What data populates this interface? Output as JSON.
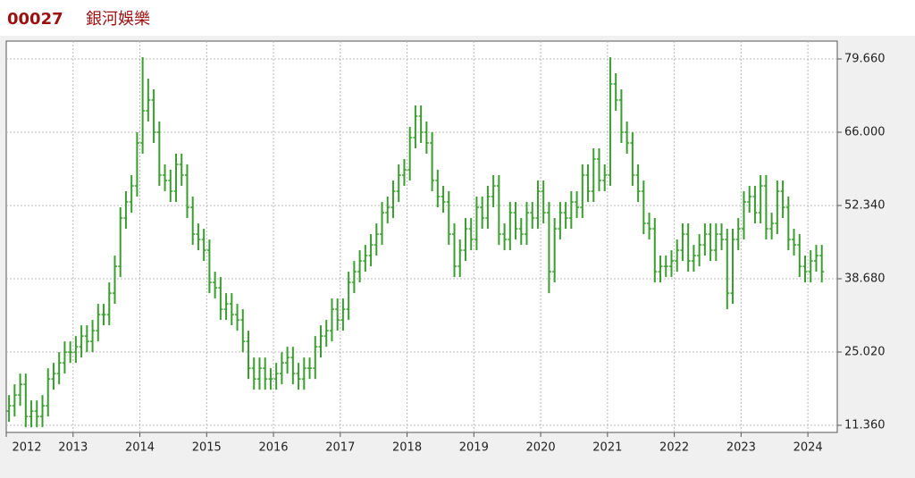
{
  "chart_data": {
    "type": "ohlc",
    "symbol": "00027",
    "title": "銀河娛樂",
    "color": "#3a9e2f",
    "grid": true,
    "categories": [
      "2012",
      null,
      null,
      null,
      null,
      null,
      null,
      null,
      null,
      null,
      null,
      null,
      "2013",
      null,
      null,
      null,
      null,
      null,
      null,
      null,
      null,
      null,
      null,
      null,
      "2014",
      null,
      null,
      null,
      null,
      null,
      null,
      null,
      null,
      null,
      null,
      null,
      "2015",
      null,
      null,
      null,
      null,
      null,
      null,
      null,
      null,
      null,
      null,
      null,
      "2016",
      null,
      null,
      null,
      null,
      null,
      null,
      null,
      null,
      null,
      null,
      null,
      "2017",
      null,
      null,
      null,
      null,
      null,
      null,
      null,
      null,
      null,
      null,
      null,
      "2018",
      null,
      null,
      null,
      null,
      null,
      null,
      null,
      null,
      null,
      null,
      null,
      "2019",
      null,
      null,
      null,
      null,
      null,
      null,
      null,
      null,
      null,
      null,
      null,
      "2020",
      null,
      null,
      null,
      null,
      null,
      null,
      null,
      null,
      null,
      null,
      null,
      "2021",
      null,
      null,
      null,
      null,
      null,
      null,
      null,
      null,
      null,
      null,
      null,
      "2022",
      null,
      null,
      null,
      null,
      null,
      null,
      null,
      null,
      null,
      null,
      null,
      "2023",
      null,
      null,
      null,
      null,
      null,
      null,
      null,
      null,
      null,
      null,
      null,
      "2024",
      null,
      null
    ],
    "open": [
      14,
      15,
      17,
      19,
      13,
      14,
      13,
      15,
      20,
      21,
      23,
      25,
      25,
      26,
      28,
      27,
      29,
      32,
      32,
      36,
      41,
      50,
      53,
      56,
      64,
      70,
      72,
      66,
      58,
      57,
      55,
      60,
      58,
      52,
      47,
      46,
      44,
      38,
      37,
      33,
      34,
      32,
      31,
      27,
      22,
      20,
      22,
      20,
      20,
      21,
      23,
      24,
      21,
      20,
      22,
      22,
      26,
      28,
      29,
      33,
      31,
      33,
      38,
      40,
      42,
      43,
      45,
      47,
      51,
      52,
      55,
      58,
      59,
      65,
      69,
      66,
      64,
      57,
      54,
      53,
      47,
      41,
      44,
      48,
      46,
      52,
      50,
      54,
      56,
      47,
      46,
      51,
      48,
      47,
      51,
      50,
      55,
      51,
      40,
      48,
      51,
      50,
      53,
      52,
      58,
      55,
      61,
      57,
      58,
      75,
      72,
      66,
      64,
      58,
      55,
      49,
      48,
      40,
      41,
      41,
      42,
      44,
      47,
      42,
      43,
      45,
      47,
      44,
      47,
      46,
      36,
      46,
      48,
      53,
      54,
      51,
      56,
      48,
      49,
      55,
      52,
      46,
      45,
      41,
      40,
      42,
      43
    ],
    "high": [
      17,
      19,
      21,
      21,
      16,
      16,
      17,
      22,
      23,
      25,
      27,
      27,
      28,
      30,
      30,
      31,
      34,
      34,
      38,
      43,
      52,
      55,
      58,
      66,
      80,
      76,
      74,
      68,
      60,
      59,
      62,
      62,
      60,
      54,
      49,
      48,
      46,
      40,
      39,
      36,
      36,
      34,
      33,
      29,
      24,
      24,
      24,
      22,
      23,
      25,
      26,
      26,
      23,
      24,
      24,
      28,
      30,
      31,
      35,
      35,
      35,
      40,
      42,
      44,
      45,
      47,
      49,
      53,
      54,
      57,
      60,
      61,
      67,
      71,
      71,
      68,
      66,
      59,
      56,
      55,
      49,
      46,
      50,
      50,
      54,
      54,
      56,
      58,
      58,
      49,
      53,
      53,
      50,
      53,
      53,
      57,
      57,
      53,
      50,
      53,
      53,
      55,
      55,
      60,
      60,
      63,
      63,
      60,
      80,
      77,
      74,
      68,
      66,
      60,
      57,
      51,
      50,
      43,
      43,
      44,
      46,
      49,
      49,
      45,
      47,
      49,
      49,
      49,
      49,
      48,
      48,
      50,
      55,
      56,
      56,
      58,
      58,
      51,
      57,
      57,
      54,
      48,
      47,
      43,
      44,
      45,
      45
    ],
    "low": [
      12,
      13,
      15,
      11,
      11,
      11,
      11,
      13,
      18,
      19,
      21,
      23,
      23,
      24,
      25,
      25,
      27,
      30,
      30,
      34,
      39,
      48,
      51,
      54,
      62,
      68,
      64,
      56,
      55,
      53,
      53,
      56,
      50,
      45,
      44,
      42,
      36,
      35,
      31,
      31,
      30,
      29,
      25,
      20,
      18,
      18,
      18,
      18,
      18,
      19,
      21,
      19,
      18,
      18,
      20,
      20,
      24,
      26,
      27,
      29,
      29,
      31,
      36,
      38,
      40,
      41,
      43,
      45,
      49,
      50,
      53,
      56,
      57,
      63,
      64,
      62,
      55,
      52,
      51,
      45,
      39,
      39,
      42,
      44,
      44,
      48,
      48,
      52,
      45,
      44,
      44,
      46,
      45,
      45,
      48,
      48,
      49,
      36,
      38,
      46,
      48,
      48,
      50,
      50,
      53,
      53,
      55,
      55,
      56,
      70,
      64,
      62,
      56,
      53,
      47,
      46,
      38,
      38,
      39,
      39,
      40,
      42,
      40,
      40,
      41,
      43,
      42,
      42,
      44,
      33,
      34,
      44,
      46,
      51,
      49,
      49,
      46,
      46,
      47,
      50,
      44,
      43,
      39,
      38,
      38,
      40,
      38
    ],
    "close": [
      15,
      17,
      19,
      13,
      14,
      13,
      15,
      20,
      21,
      23,
      25,
      25,
      26,
      28,
      27,
      29,
      32,
      32,
      36,
      41,
      50,
      53,
      56,
      64,
      70,
      72,
      66,
      58,
      57,
      55,
      60,
      58,
      52,
      47,
      46,
      44,
      38,
      37,
      33,
      34,
      32,
      31,
      27,
      22,
      20,
      22,
      20,
      20,
      21,
      23,
      24,
      21,
      20,
      22,
      22,
      26,
      28,
      29,
      33,
      31,
      33,
      38,
      40,
      42,
      43,
      45,
      47,
      51,
      52,
      55,
      58,
      59,
      65,
      69,
      66,
      64,
      57,
      54,
      53,
      47,
      41,
      44,
      48,
      46,
      52,
      50,
      54,
      56,
      47,
      46,
      51,
      48,
      47,
      51,
      50,
      55,
      51,
      40,
      48,
      51,
      50,
      53,
      52,
      58,
      55,
      61,
      57,
      58,
      75,
      72,
      66,
      64,
      58,
      55,
      49,
      48,
      40,
      41,
      41,
      42,
      44,
      47,
      42,
      43,
      45,
      47,
      44,
      47,
      46,
      36,
      46,
      48,
      53,
      54,
      51,
      56,
      48,
      49,
      55,
      52,
      46,
      45,
      41,
      40,
      42,
      43,
      40
    ],
    "ylim": [
      10.03,
      82.99
    ],
    "yticks": [
      {
        "value": 11.36,
        "label": "11.360"
      },
      {
        "value": 25.02,
        "label": "25.020"
      },
      {
        "value": 38.68,
        "label": "38.680"
      },
      {
        "value": 52.34,
        "label": "52.340"
      },
      {
        "value": 66,
        "label": "66.000"
      },
      {
        "value": 79.66,
        "label": "79.660"
      }
    ]
  }
}
